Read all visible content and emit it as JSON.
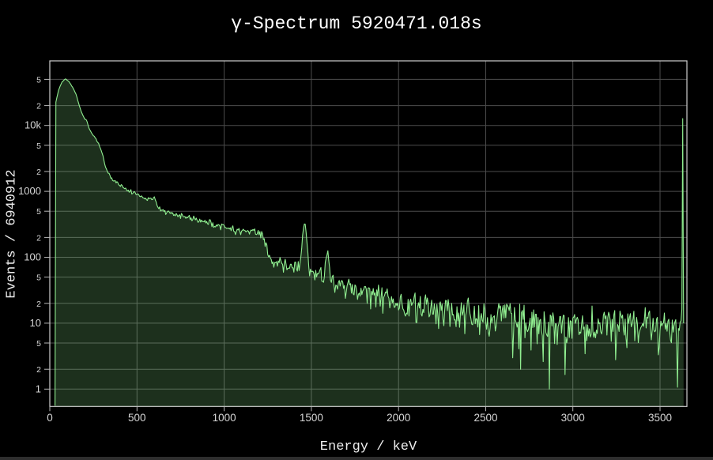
{
  "colors": {
    "background": "#000000",
    "line": "#90EE90",
    "fill": "rgba(144,238,144,0.2)",
    "grid": "#4d4d4d",
    "frame": "#cfcfcf",
    "tick": "#b8b8b8",
    "tick_label": "#d6d6d6",
    "title_text": "#ffffff",
    "axis_label_text": "#eeeeee",
    "bottom_bar": "#2e2e2e"
  },
  "chart_data": {
    "type": "area",
    "title": "γ-Spectrum 5920471.018s",
    "xlabel": "Energy / keV",
    "ylabel": "Events / 6940912",
    "grid": true,
    "legend": false,
    "y_scale": "log",
    "x_range": [
      0,
      3654
    ],
    "y_range": [
      0.545,
      95300
    ],
    "x_ticks": [
      0,
      500,
      1000,
      1500,
      2000,
      2500,
      3000,
      3500
    ],
    "y_ticks": [
      {
        "value": 1,
        "label": "1",
        "major": true
      },
      {
        "value": 2,
        "label": "2",
        "major": false
      },
      {
        "value": 5,
        "label": "5",
        "major": false
      },
      {
        "value": 10,
        "label": "10",
        "major": true
      },
      {
        "value": 20,
        "label": "2",
        "major": false
      },
      {
        "value": 50,
        "label": "5",
        "major": false
      },
      {
        "value": 100,
        "label": "100",
        "major": true
      },
      {
        "value": 200,
        "label": "2",
        "major": false
      },
      {
        "value": 500,
        "label": "5",
        "major": false
      },
      {
        "value": 1000,
        "label": "1000",
        "major": true
      },
      {
        "value": 2000,
        "label": "2",
        "major": false
      },
      {
        "value": 5000,
        "label": "5",
        "major": false
      },
      {
        "value": 10000,
        "label": "10k",
        "major": true
      },
      {
        "value": 20000,
        "label": "2",
        "major": false
      },
      {
        "value": 50000,
        "label": "5",
        "major": false
      }
    ],
    "binning": {
      "start": 30,
      "end": 3636,
      "step_kev": 5
    },
    "envelope_points": [
      [
        30,
        0.56
      ],
      [
        32,
        21000
      ],
      [
        50,
        34000
      ],
      [
        68,
        45000
      ],
      [
        90,
        51000
      ],
      [
        110,
        46000
      ],
      [
        130,
        38000
      ],
      [
        150,
        30000
      ],
      [
        168,
        20500
      ],
      [
        185,
        15000
      ],
      [
        200,
        12500
      ],
      [
        213,
        11800
      ],
      [
        222,
        9500
      ],
      [
        228,
        8800
      ],
      [
        240,
        7600
      ],
      [
        258,
        6600
      ],
      [
        281,
        5300
      ],
      [
        295,
        4100
      ],
      [
        304,
        3500
      ],
      [
        312,
        2800
      ],
      [
        318,
        2450
      ],
      [
        330,
        2000
      ],
      [
        349,
        1700
      ],
      [
        360,
        1520
      ],
      [
        372,
        1450
      ],
      [
        395,
        1280
      ],
      [
        417,
        1180
      ],
      [
        440,
        1060
      ],
      [
        462,
        1000
      ],
      [
        480,
        950
      ],
      [
        508,
        880
      ],
      [
        530,
        830
      ],
      [
        553,
        780
      ],
      [
        580,
        770
      ],
      [
        600,
        820
      ],
      [
        615,
        620
      ],
      [
        630,
        530
      ],
      [
        666,
        490
      ],
      [
        700,
        460
      ],
      [
        757,
        420
      ],
      [
        800,
        390
      ],
      [
        848,
        365
      ],
      [
        900,
        335
      ],
      [
        938,
        318
      ],
      [
        1000,
        290
      ],
      [
        1029,
        280
      ],
      [
        1080,
        262
      ],
      [
        1120,
        252
      ],
      [
        1188,
        235
      ],
      [
        1219,
        222
      ],
      [
        1233,
        170
      ],
      [
        1256,
        110
      ],
      [
        1270,
        92
      ],
      [
        1290,
        84
      ],
      [
        1330,
        80
      ],
      [
        1370,
        74
      ],
      [
        1410,
        71
      ],
      [
        1440,
        69
      ],
      [
        1470,
        64
      ],
      [
        1500,
        58
      ],
      [
        1540,
        52
      ],
      [
        1565,
        50
      ],
      [
        1590,
        48
      ],
      [
        1620,
        46
      ],
      [
        1660,
        38
      ],
      [
        1700,
        35
      ],
      [
        1800,
        28
      ],
      [
        1900,
        25
      ],
      [
        2000,
        22
      ],
      [
        2100,
        19
      ],
      [
        2200,
        17
      ],
      [
        2300,
        14.5
      ],
      [
        2400,
        13
      ],
      [
        2500,
        11.5
      ],
      [
        2600,
        11
      ],
      [
        2700,
        10
      ],
      [
        2800,
        9.5
      ],
      [
        2900,
        9.5
      ],
      [
        3000,
        9.5
      ],
      [
        3100,
        9.5
      ],
      [
        3200,
        10
      ],
      [
        3300,
        10
      ],
      [
        3400,
        10
      ],
      [
        3500,
        10
      ],
      [
        3636,
        10
      ]
    ],
    "peaks": [
      {
        "center": 1461,
        "amplitude": 262,
        "sigma": 10
      },
      {
        "center": 1592,
        "amplitude": 72,
        "sigma": 8
      },
      {
        "center": 2610,
        "amplitude": 6,
        "sigma": 30
      }
    ],
    "overflow_spike": {
      "energy": 3628,
      "counts": 12700
    },
    "notable_points": [
      [
        2700,
        2
      ],
      [
        2865,
        1
      ]
    ],
    "noise": {
      "model": "poisson",
      "seed": 11
    }
  }
}
